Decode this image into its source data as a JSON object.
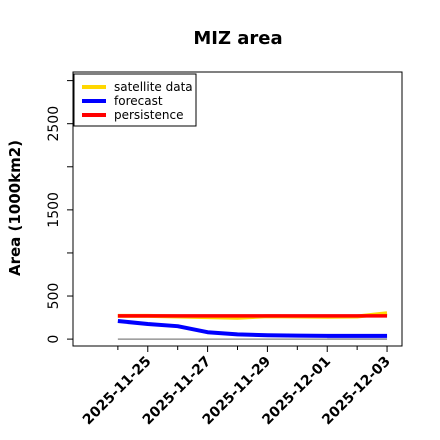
{
  "chart_data": {
    "type": "line",
    "title": "MIZ area",
    "xlabel": "",
    "ylabel": "Area (1000km2)",
    "x": [
      "2025-11-24",
      "2025-11-25",
      "2025-11-26",
      "2025-11-27",
      "2025-11-28",
      "2025-11-29",
      "2025-11-30",
      "2025-12-01",
      "2025-12-02",
      "2025-12-03"
    ],
    "xticks": [
      {
        "label": "2025-11-25",
        "highlight": true
      },
      {
        "label": "2025-11-27",
        "highlight": false
      },
      {
        "label": "2025-11-29",
        "highlight": false
      },
      {
        "label": "2025-12-01",
        "highlight": false
      },
      {
        "label": "2025-12-03",
        "highlight": false
      }
    ],
    "yticks": [
      0,
      500,
      1500,
      2500
    ],
    "ylim": [
      -80,
      3100
    ],
    "xlim": [
      "2025-11-22.5",
      "2025-12-03.5"
    ],
    "series": [
      {
        "name": "satellite data",
        "color": "#FFD700",
        "values": [
          270,
          270,
          262,
          255,
          248,
          265,
          262,
          260,
          262,
          300
        ]
      },
      {
        "name": "forecast",
        "color": "#0000FF",
        "values": [
          210,
          175,
          150,
          80,
          55,
          45,
          40,
          38,
          37,
          37
        ]
      },
      {
        "name": "persistence",
        "color": "#FF0000",
        "values": [
          270,
          270,
          270,
          270,
          270,
          270,
          270,
          270,
          270,
          270
        ]
      }
    ],
    "reference_line": {
      "color": "#808080",
      "value": 0
    },
    "shaded_band": {
      "color": "#A9A9F0",
      "from": "2025-12-01",
      "to": "2025-12-03",
      "low": 0,
      "high": 30
    },
    "legend": {
      "position": "top-left"
    },
    "grid": false,
    "highlight_color": "#228B22"
  }
}
